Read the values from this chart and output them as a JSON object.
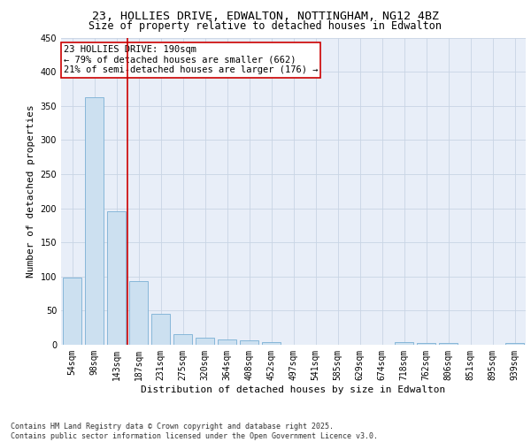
{
  "title_line1": "23, HOLLIES DRIVE, EDWALTON, NOTTINGHAM, NG12 4BZ",
  "title_line2": "Size of property relative to detached houses in Edwalton",
  "xlabel": "Distribution of detached houses by size in Edwalton",
  "ylabel": "Number of detached properties",
  "categories": [
    "54sqm",
    "98sqm",
    "143sqm",
    "187sqm",
    "231sqm",
    "275sqm",
    "320sqm",
    "364sqm",
    "408sqm",
    "452sqm",
    "497sqm",
    "541sqm",
    "585sqm",
    "629sqm",
    "674sqm",
    "718sqm",
    "762sqm",
    "806sqm",
    "851sqm",
    "895sqm",
    "939sqm"
  ],
  "values": [
    98,
    363,
    195,
    93,
    45,
    15,
    10,
    8,
    6,
    4,
    0,
    0,
    0,
    0,
    0,
    4,
    3,
    2,
    0,
    0,
    2
  ],
  "bar_color": "#cce0f0",
  "bar_edge_color": "#7ab0d4",
  "vline_x_index": 3,
  "vline_color": "#cc0000",
  "annotation_title": "23 HOLLIES DRIVE: 190sqm",
  "annotation_line2": "← 79% of detached houses are smaller (662)",
  "annotation_line3": "21% of semi-detached houses are larger (176) →",
  "annotation_box_color": "#cc0000",
  "annotation_bg": "#ffffff",
  "ylim": [
    0,
    450
  ],
  "yticks": [
    0,
    50,
    100,
    150,
    200,
    250,
    300,
    350,
    400,
    450
  ],
  "plot_bg": "#e8eef8",
  "footer_line1": "Contains HM Land Registry data © Crown copyright and database right 2025.",
  "footer_line2": "Contains public sector information licensed under the Open Government Licence v3.0.",
  "title_fontsize": 9.5,
  "subtitle_fontsize": 8.5,
  "axis_label_fontsize": 8,
  "tick_fontsize": 7,
  "annotation_fontsize": 7.5,
  "footer_fontsize": 6
}
